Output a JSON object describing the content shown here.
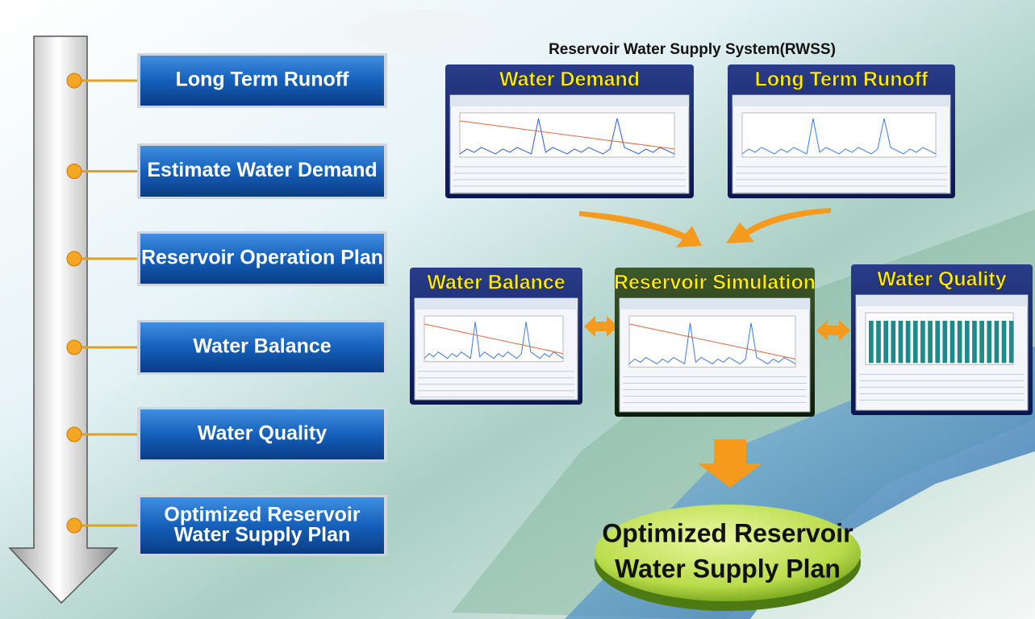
{
  "header": {
    "title": "Reservoir Water Supply System(RWSS)"
  },
  "steps": [
    "Long Term Runoff",
    "Estimate Water Demand",
    "Reservoir Operation Plan",
    "Water Balance",
    "Water Quality",
    [
      "Optimized Reservoir",
      "Water Supply Plan"
    ]
  ],
  "panels": [
    "Water Demand",
    "Long Term Runoff",
    "Water Balance",
    "Reservoir Simulation",
    "Water Quality"
  ],
  "result": [
    "Optimized Reservoir",
    "Water Supply Plan"
  ]
}
